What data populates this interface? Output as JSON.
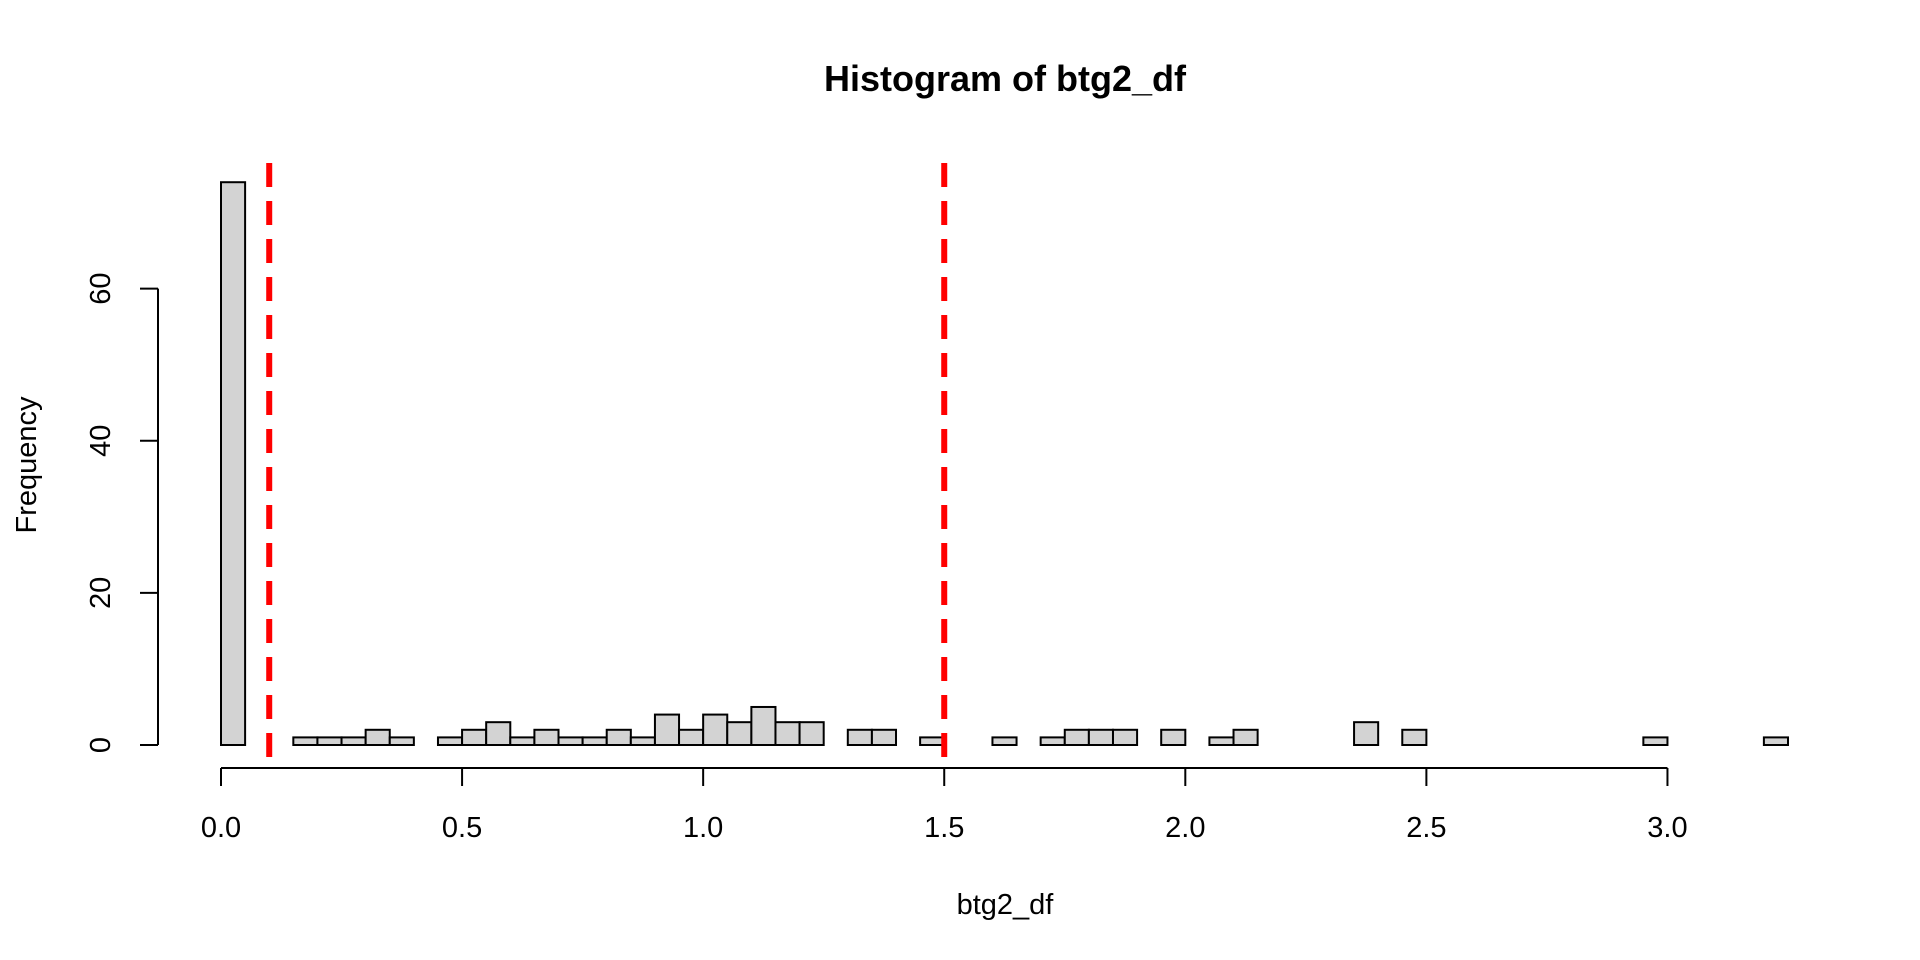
{
  "chart_data": {
    "type": "bar",
    "title": "Histogram of btg2_df",
    "xlabel": "btg2_df",
    "ylabel": "Frequency",
    "bin_width": 0.05,
    "bins_start": [
      0.0,
      0.05,
      0.1,
      0.15,
      0.2,
      0.25,
      0.3,
      0.35,
      0.4,
      0.45,
      0.5,
      0.55,
      0.6,
      0.65,
      0.7,
      0.75,
      0.8,
      0.85,
      0.9,
      0.95,
      1.0,
      1.05,
      1.1,
      1.15,
      1.2,
      1.25,
      1.3,
      1.35,
      1.4,
      1.45,
      1.5,
      1.55,
      1.6,
      1.65,
      1.7,
      1.75,
      1.8,
      1.85,
      1.9,
      1.95,
      2.0,
      2.05,
      2.1,
      2.15,
      2.2,
      2.25,
      2.3,
      2.35,
      2.4,
      2.45,
      2.5,
      2.55,
      2.6,
      2.65,
      2.7,
      2.75,
      2.8,
      2.85,
      2.9,
      2.95,
      3.0,
      3.05,
      3.1,
      3.15,
      3.2
    ],
    "values": [
      74,
      0,
      0,
      1,
      1,
      1,
      2,
      1,
      0,
      1,
      2,
      3,
      1,
      2,
      1,
      1,
      2,
      1,
      4,
      2,
      4,
      3,
      5,
      3,
      3,
      0,
      2,
      2,
      0,
      1,
      0,
      0,
      1,
      0,
      1,
      2,
      2,
      2,
      0,
      2,
      0,
      1,
      2,
      0,
      0,
      0,
      0,
      3,
      0,
      2,
      0,
      0,
      0,
      0,
      0,
      0,
      0,
      0,
      0,
      1,
      0,
      0,
      0,
      0,
      1
    ],
    "xlim": [
      0,
      3.25
    ],
    "ylim": [
      0,
      76
    ],
    "x_ticks": [
      "0.0",
      "0.5",
      "1.0",
      "1.5",
      "2.0",
      "2.5",
      "3.0"
    ],
    "x_tick_values": [
      0,
      0.5,
      1.0,
      1.5,
      2.0,
      2.5,
      3.0
    ],
    "y_ticks": [
      "0",
      "20",
      "40",
      "60"
    ],
    "y_tick_values": [
      0,
      20,
      40,
      60
    ],
    "reference_lines": [
      {
        "x": 0.1,
        "color": "#ff0000",
        "style": "dashed"
      },
      {
        "x": 1.5,
        "color": "#ff0000",
        "style": "dashed"
      }
    ],
    "bar_fill": "#d3d3d3",
    "grid": false
  }
}
